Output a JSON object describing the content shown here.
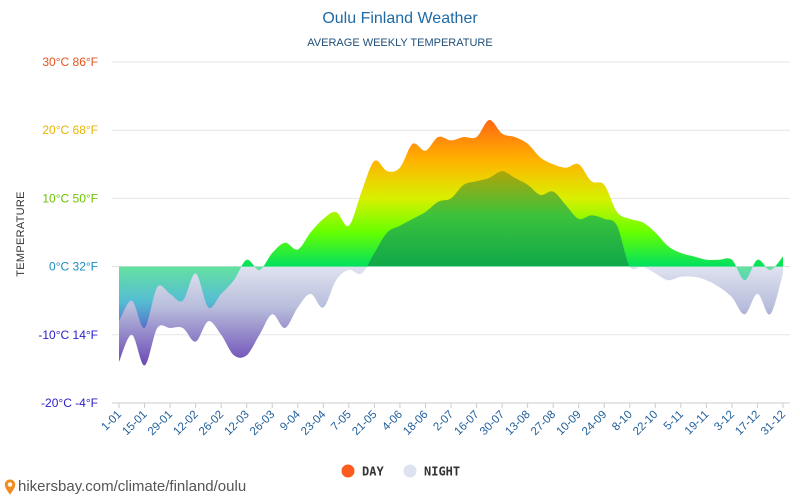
{
  "chart_data": {
    "type": "area",
    "title": "Oulu Finland Weather",
    "subtitle": "AVERAGE WEEKLY TEMPERATURE",
    "ylabel": "TEMPERATURE",
    "ylim": [
      -20,
      30
    ],
    "y_ticks": [
      {
        "value": 30,
        "label": "30°C 86°F",
        "color": "#e8531f"
      },
      {
        "value": 20,
        "label": "20°C 68°F",
        "color": "#e8b400"
      },
      {
        "value": 10,
        "label": "10°C 50°F",
        "color": "#6cc400"
      },
      {
        "value": 0,
        "label": "0°C 32°F",
        "color": "#1a8dbf"
      },
      {
        "value": -10,
        "label": "-10°C 14°F",
        "color": "#2b20c8"
      },
      {
        "value": -20,
        "label": "-20°C -4°F",
        "color": "#2b20c8"
      }
    ],
    "x_labels": [
      "1-01",
      "15-01",
      "29-01",
      "12-02",
      "26-02",
      "12-03",
      "26-03",
      "9-04",
      "23-04",
      "7-05",
      "21-05",
      "4-06",
      "18-06",
      "2-07",
      "16-07",
      "30-07",
      "13-08",
      "27-08",
      "10-09",
      "24-09",
      "8-10",
      "22-10",
      "5-11",
      "19-11",
      "3-12",
      "17-12",
      "31-12"
    ],
    "grid": true,
    "legend_position": "bottom-center",
    "series": [
      {
        "name": "DAY",
        "values": [
          -8,
          -5,
          -9,
          -3,
          -4,
          -5,
          -1,
          -6,
          -4,
          -2,
          1,
          -0.5,
          2,
          3.5,
          2.5,
          5,
          7,
          8,
          6,
          11,
          15.5,
          14,
          14.5,
          18,
          17,
          19,
          18.5,
          19,
          19,
          21.5,
          19.5,
          19,
          18,
          16,
          15,
          14.5,
          15,
          12.5,
          12,
          8,
          7,
          6.5,
          5,
          3,
          2,
          1.5,
          1,
          1,
          1,
          -2,
          1,
          -0.5,
          1.5
        ]
      },
      {
        "name": "NIGHT",
        "values": [
          -14,
          -10,
          -14.5,
          -9,
          -9,
          -9,
          -11,
          -8,
          -10,
          -13,
          -13,
          -10,
          -7,
          -9,
          -6,
          -4,
          -6,
          -2,
          -0.5,
          -1,
          2,
          5,
          6,
          7,
          8,
          9.5,
          10,
          12,
          12.5,
          13,
          14,
          13,
          12,
          10.5,
          11,
          9,
          7,
          7.5,
          7,
          6,
          0,
          0,
          -1,
          -2,
          -1.5,
          -1.5,
          -2,
          -3,
          -4.5,
          -7,
          -4,
          -7,
          -1
        ]
      }
    ],
    "colors": {
      "day": "#ff5a1f",
      "night": "#dfe3f0",
      "grid": "#e6e6e6",
      "zero_line": "#dddddd"
    }
  },
  "footer": {
    "site_text": "hikersbay.com/climate/finland/oulu"
  }
}
